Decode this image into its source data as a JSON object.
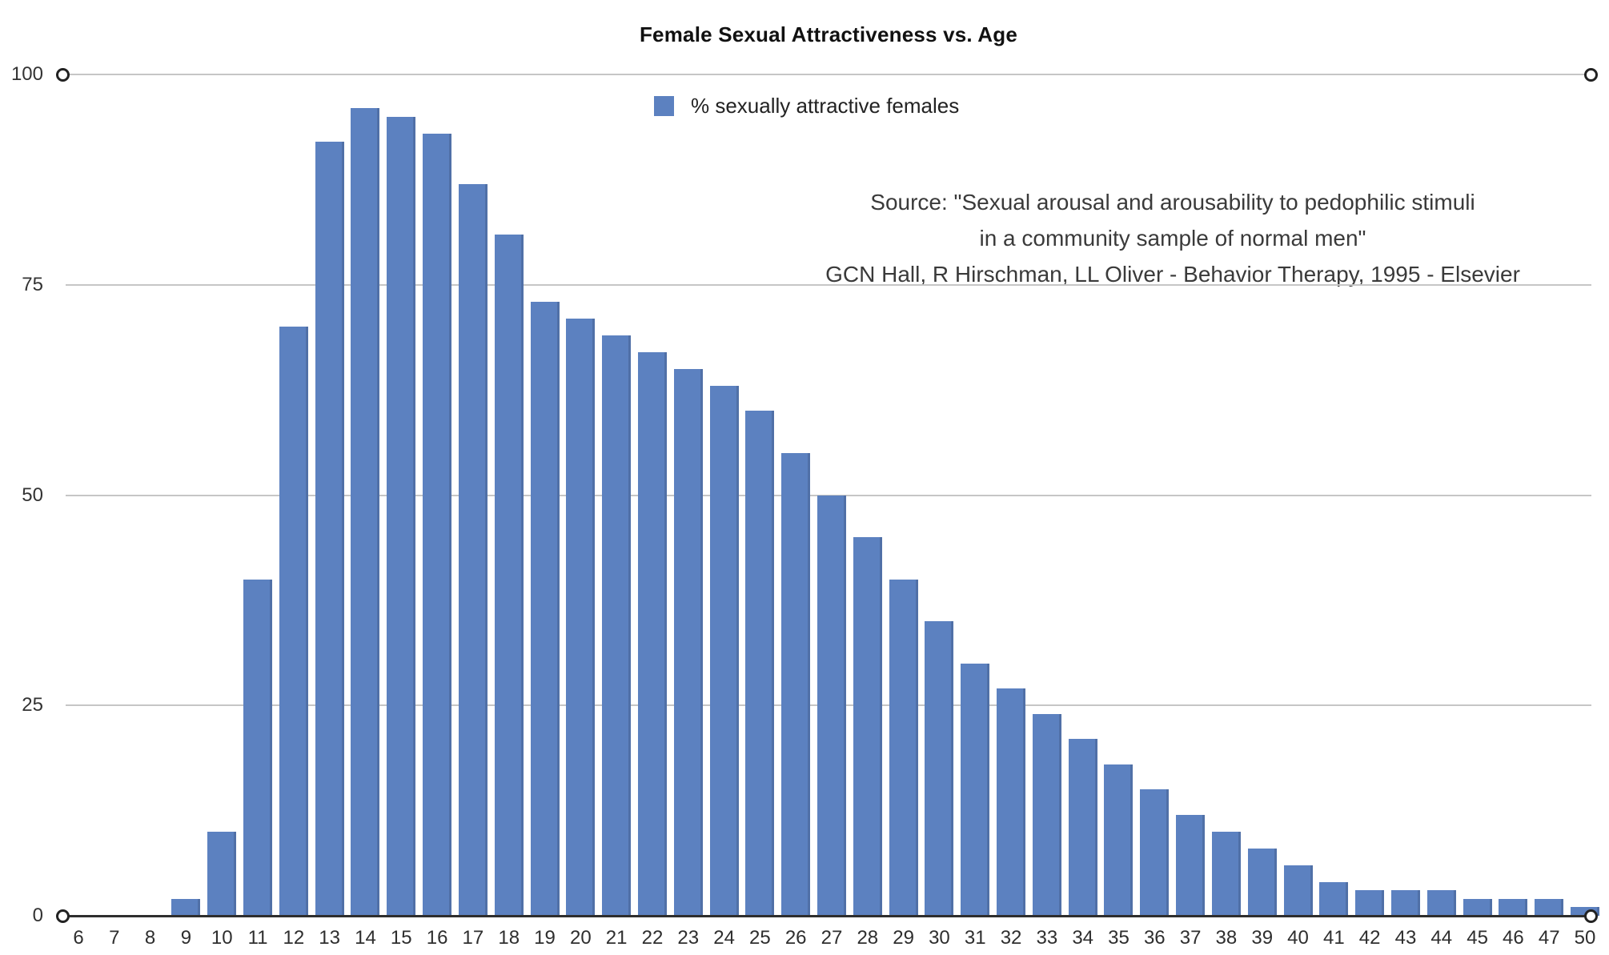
{
  "chart_data": {
    "type": "bar",
    "title": "Female Sexual Attractiveness vs. Age",
    "legend_label": "% sexually attractive females",
    "legend_position": "top-center-inside",
    "source_lines": [
      "Source: \"Sexual arousal and arousability to pedophilic stimuli",
      "in a community sample of normal men\"",
      "GCN Hall, R Hirschman, LL Oliver - Behavior Therapy, 1995 - Elsevier"
    ],
    "categories": [
      "6",
      "7",
      "8",
      "9",
      "10",
      "11",
      "12",
      "13",
      "14",
      "15",
      "16",
      "17",
      "18",
      "19",
      "20",
      "21",
      "22",
      "23",
      "24",
      "25",
      "26",
      "27",
      "28",
      "29",
      "30",
      "31",
      "32",
      "33",
      "34",
      "35",
      "36",
      "37",
      "38",
      "39",
      "40",
      "41",
      "42",
      "43",
      "44",
      "45",
      "46",
      "47",
      "50"
    ],
    "values": [
      0,
      0,
      0,
      2,
      10,
      40,
      70,
      92,
      96,
      95,
      93,
      87,
      81,
      73,
      71,
      69,
      67,
      65,
      63,
      60,
      55,
      50,
      45,
      40,
      35,
      30,
      27,
      24,
      21,
      18,
      15,
      12,
      10,
      8,
      6,
      4,
      3,
      3,
      3,
      2,
      2,
      2,
      1
    ],
    "y_ticks": [
      0,
      25,
      50,
      75,
      100
    ],
    "ylim": [
      0,
      100
    ],
    "xlabel": "",
    "ylabel": "",
    "grid": true,
    "bar_color": "#5c81c0",
    "gridline_color": "#c6c6c6",
    "axis_color": "#2e2e2e",
    "axis_endpoint_markers": true
  }
}
